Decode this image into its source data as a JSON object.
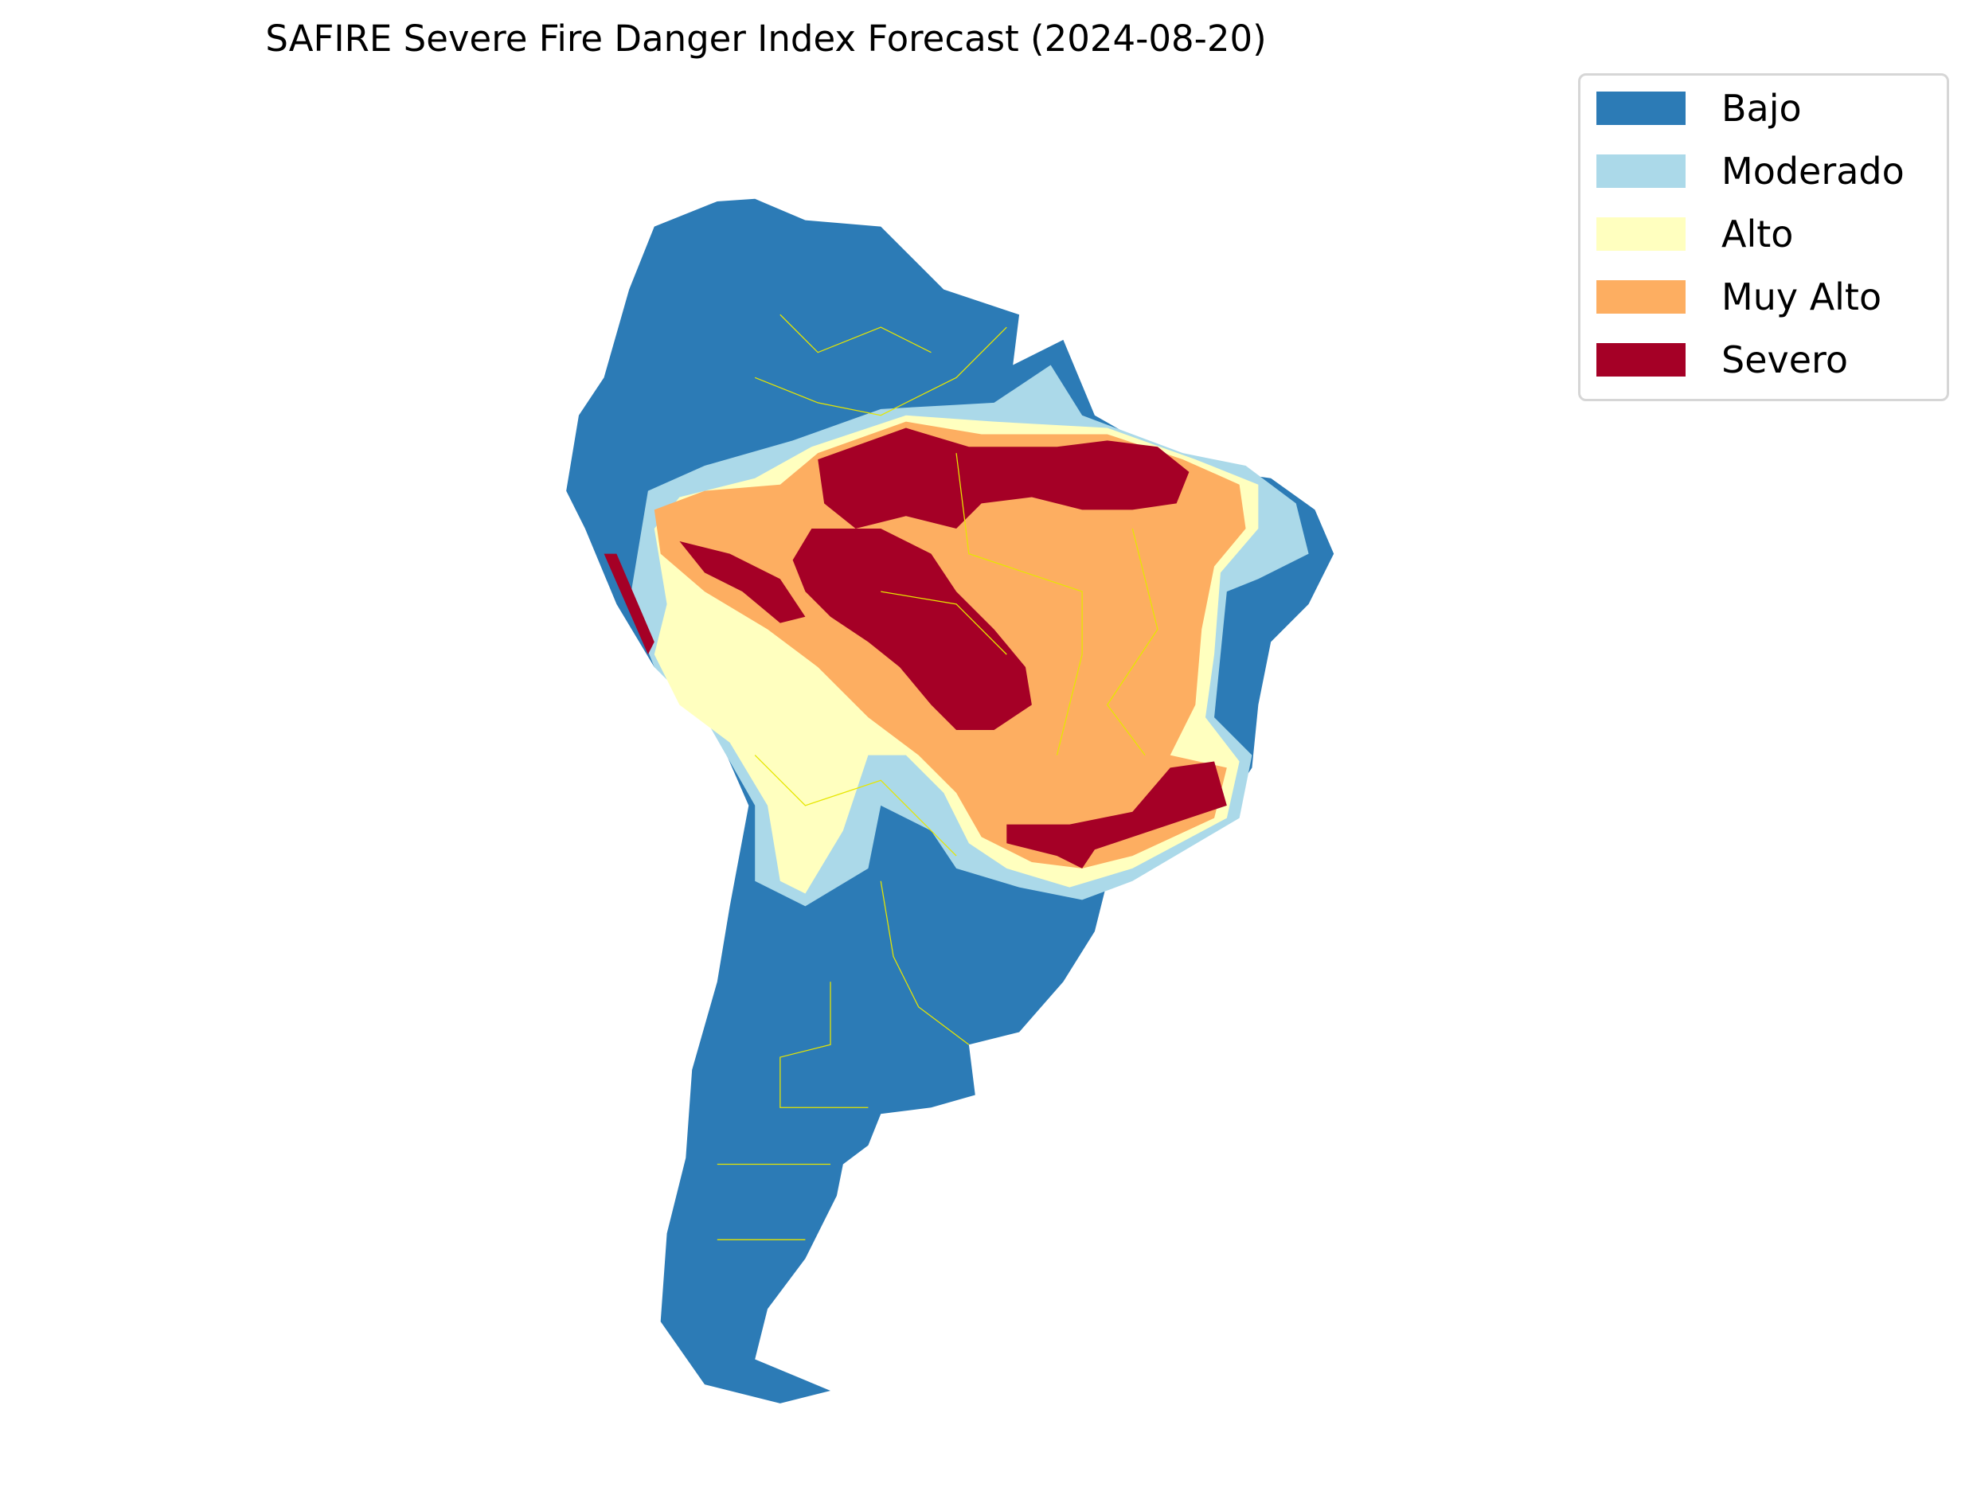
{
  "title": "SAFIRE Severe Fire Danger Index Forecast (2024-08-20)",
  "legend": {
    "placement": "top-right",
    "items": [
      {
        "label": "Bajo",
        "color": "#2c7bb6"
      },
      {
        "label": "Moderado",
        "color": "#abd9e9"
      },
      {
        "label": "Alto",
        "color": "#ffffbf"
      },
      {
        "label": "Muy Alto",
        "color": "#fdae61"
      },
      {
        "label": "Severo",
        "color": "#a50026"
      }
    ]
  },
  "border_color": "#e6e600"
}
